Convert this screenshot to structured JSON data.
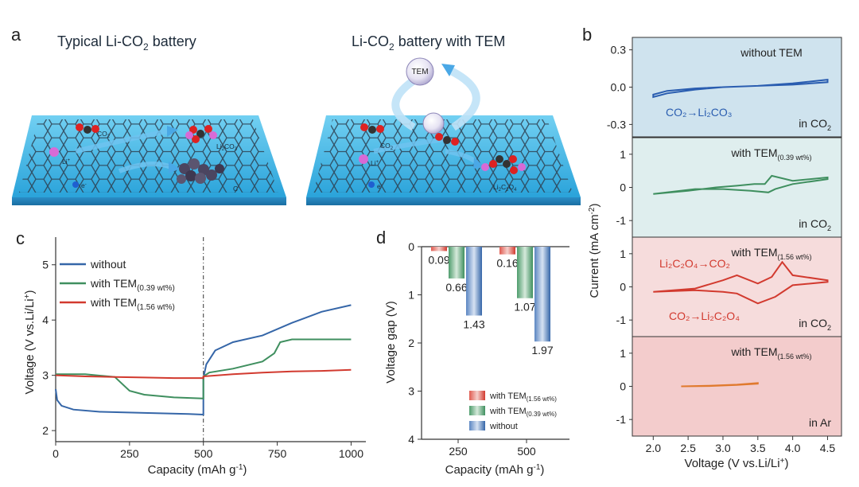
{
  "panel_a": {
    "letter": "a",
    "left": {
      "title_main": "Typical Li-CO",
      "title_sub": "2",
      "title_tail": " battery",
      "labels": {
        "co2": "CO",
        "co2_sub": "2",
        "li_plus": "Li",
        "li_sup": "+",
        "e": "e",
        "e_sup": "-",
        "li2co3": "Li",
        "li2co3_sub": "2",
        "li2co3_mid": "CO",
        "li2co3_sub2": "3",
        "c": "C"
      }
    },
    "right": {
      "title_main": "Li-CO",
      "title_sub": "2",
      "title_tail": " battery with TEM",
      "tem": "TEM",
      "labels": {
        "co2": "CO",
        "co2_sub": "2",
        "li_plus": "Li",
        "li_sup": "+",
        "e": "e",
        "e_sup": "-",
        "li2c2o4": "Li",
        "li2c2o4_sub": "2",
        "li2c2o4_mid": "C",
        "li2c2o4_sub2": "2",
        "li2c2o4_mid2": "O",
        "li2c2o4_sub3": "4"
      }
    },
    "colors": {
      "plate": "#3fb8e8",
      "plate_edge": "#1a7fb5",
      "mesh": "#2b3e52",
      "arrow": "#4aa8e6"
    }
  },
  "panel_b": {
    "letter": "b",
    "ylabel": "Current (mA cm",
    "ylabel_sup": "-2",
    "ylabel_tail": ")",
    "xlabel": "Voltage (V vs.Li/Li",
    "xlabel_sup": "+",
    "xlabel_tail": ")",
    "xticks": [
      "2.0",
      "2.5",
      "3.0",
      "3.5",
      "4.0",
      "4.5"
    ],
    "subplots": [
      {
        "label": "without TEM",
        "label_sub": "",
        "env": "in CO",
        "env_sub": "2",
        "yticks": [
          "0.3",
          "0.0",
          "-0.3"
        ],
        "annotation": "CO₂→Li₂CO₃",
        "color": "#2a5db0",
        "bg": "#cfe3ee"
      },
      {
        "label": "with TEM",
        "label_sub": "(0.39 wt%)",
        "env": "in CO",
        "env_sub": "2",
        "yticks": [
          "1",
          "0",
          "-1"
        ],
        "color": "#3f8f5f",
        "bg": "#dfeeee"
      },
      {
        "label": "with TEM",
        "label_sub": "(1.56 wt%)",
        "env": "in CO",
        "env_sub": "2",
        "yticks": [
          "1",
          "0",
          "-1"
        ],
        "annotation_top": "Li₂C₂O₄→CO₂",
        "annotation_bottom": "CO₂→Li₂C₂O₄",
        "color": "#d23a2f",
        "bg": "#f6dcdc"
      },
      {
        "label": "with TEM",
        "label_sub": "(1.56 wt%)",
        "env": "in Ar",
        "env_sub": "",
        "yticks": [
          "1",
          "0",
          "-1"
        ],
        "color": "#e07a2e",
        "bg": "#f3cccc"
      }
    ]
  },
  "panel_c": {
    "letter": "c",
    "xlabel": "Capacity (mAh g",
    "xlabel_sup": "-1",
    "xlabel_tail": ")",
    "ylabel": "Voltage (V vs.Li/Li",
    "ylabel_sup": "+",
    "ylabel_tail": ")",
    "legend": [
      {
        "name": "without",
        "sub": "",
        "color": "#3566a8"
      },
      {
        "name": "with TEM",
        "sub": "(0.39 wt%)",
        "color": "#3f8f5f"
      },
      {
        "name": "with TEM",
        "sub": "(1.56 wt%)",
        "color": "#d23a2f"
      }
    ]
  },
  "panel_d": {
    "letter": "d",
    "xlabel": "Capacity (mAh g",
    "xlabel_sup": "-1",
    "xlabel_tail": ")",
    "ylabel": "Voltage gap (V)",
    "legend": [
      {
        "name": "with TEM",
        "sub": "(1.56 wt%)",
        "color": "#d23a2f"
      },
      {
        "name": "with TEM",
        "sub": "(0.39 wt%)",
        "color": "#3f8f5f"
      },
      {
        "name": "without",
        "sub": "",
        "color": "#3566a8"
      }
    ]
  },
  "chart_data": [
    {
      "panel": "b",
      "type": "line",
      "xlabel": "Voltage (V vs.Li/Li+)",
      "ylabel": "Current (mA cm-2)",
      "xlim": [
        1.7,
        4.7
      ],
      "series": [
        {
          "name": "without TEM",
          "ylim": [
            -0.4,
            0.4
          ],
          "x": [
            2.0,
            2.2,
            2.6,
            3.0,
            3.5,
            4.0,
            4.5,
            4.5,
            4.0,
            3.5,
            3.0,
            2.6,
            2.2,
            2.0
          ],
          "y": [
            -0.06,
            -0.03,
            -0.01,
            0.0,
            0.01,
            0.02,
            0.04,
            0.06,
            0.03,
            0.01,
            0.0,
            -0.02,
            -0.05,
            -0.08
          ]
        },
        {
          "name": "with TEM (0.39 wt%)",
          "ylim": [
            -1.5,
            1.5
          ],
          "x": [
            2.0,
            2.5,
            2.9,
            3.2,
            3.45,
            3.6,
            3.7,
            4.0,
            4.5,
            4.5,
            4.0,
            3.75,
            3.65,
            3.4,
            3.0,
            2.6,
            2.0
          ],
          "y": [
            -0.2,
            -0.1,
            0.0,
            0.05,
            0.1,
            0.1,
            0.35,
            0.2,
            0.3,
            0.25,
            0.1,
            -0.05,
            -0.15,
            -0.1,
            -0.05,
            -0.05,
            -0.2
          ]
        },
        {
          "name": "with TEM (1.56 wt%)",
          "ylim": [
            -1.5,
            1.5
          ],
          "x": [
            2.0,
            2.6,
            3.0,
            3.2,
            3.5,
            3.7,
            3.85,
            4.0,
            4.5,
            4.5,
            4.0,
            3.75,
            3.5,
            3.2,
            3.0,
            2.6,
            2.0
          ],
          "y": [
            -0.15,
            -0.05,
            0.2,
            0.35,
            0.1,
            0.3,
            0.75,
            0.35,
            0.2,
            0.15,
            0.05,
            -0.3,
            -0.5,
            -0.2,
            -0.15,
            -0.1,
            -0.15
          ]
        },
        {
          "name": "with TEM (1.56 wt%) in Ar",
          "ylim": [
            -1.5,
            1.5
          ],
          "x": [
            2.4,
            2.8,
            3.2,
            3.5,
            3.5,
            3.2,
            2.8,
            2.4
          ],
          "y": [
            0.0,
            0.02,
            0.05,
            0.1,
            0.08,
            0.04,
            0.01,
            0.0
          ]
        }
      ]
    },
    {
      "panel": "c",
      "type": "line",
      "xlabel": "Capacity (mAh g-1)",
      "ylabel": "Voltage (V vs.Li/Li+)",
      "xlim": [
        0,
        1050
      ],
      "ylim": [
        1.8,
        5.5
      ],
      "xticks": [
        0,
        250,
        500,
        750,
        1000
      ],
      "yticks": [
        2,
        3,
        4,
        5
      ],
      "series": [
        {
          "name": "without",
          "x": [
            0,
            5,
            20,
            60,
            150,
            300,
            450,
            500,
            500,
            510,
            540,
            600,
            700,
            800,
            900,
            1000
          ],
          "y": [
            2.75,
            2.55,
            2.45,
            2.38,
            2.34,
            2.32,
            2.3,
            2.29,
            2.95,
            3.2,
            3.45,
            3.6,
            3.72,
            3.95,
            4.15,
            4.27
          ]
        },
        {
          "name": "with TEM (0.39 wt%)",
          "x": [
            0,
            50,
            100,
            200,
            250,
            300,
            400,
            500,
            500,
            520,
            600,
            700,
            740,
            760,
            800,
            900,
            1000
          ],
          "y": [
            3.02,
            3.02,
            3.02,
            2.97,
            2.72,
            2.65,
            2.6,
            2.58,
            2.98,
            3.05,
            3.12,
            3.25,
            3.4,
            3.6,
            3.65,
            3.65,
            3.65
          ]
        },
        {
          "name": "with TEM (1.56 wt%)",
          "x": [
            0,
            100,
            200,
            300,
            400,
            500,
            500,
            600,
            700,
            800,
            900,
            1000
          ],
          "y": [
            3.0,
            2.98,
            2.97,
            2.96,
            2.95,
            2.95,
            2.98,
            3.02,
            3.05,
            3.07,
            3.08,
            3.1
          ]
        }
      ]
    },
    {
      "panel": "d",
      "type": "bar",
      "categories": [
        "250",
        "500"
      ],
      "xlabel": "Capacity (mAh g-1)",
      "ylabel": "Voltage gap (V)",
      "ylim": [
        0,
        4
      ],
      "yticks": [
        0,
        1,
        2,
        3,
        4
      ],
      "series": [
        {
          "name": "with TEM (1.56 wt%)",
          "values": [
            0.09,
            0.16
          ]
        },
        {
          "name": "with TEM (0.39 wt%)",
          "values": [
            0.66,
            1.07
          ]
        },
        {
          "name": "without",
          "values": [
            1.43,
            1.97
          ]
        }
      ]
    }
  ]
}
